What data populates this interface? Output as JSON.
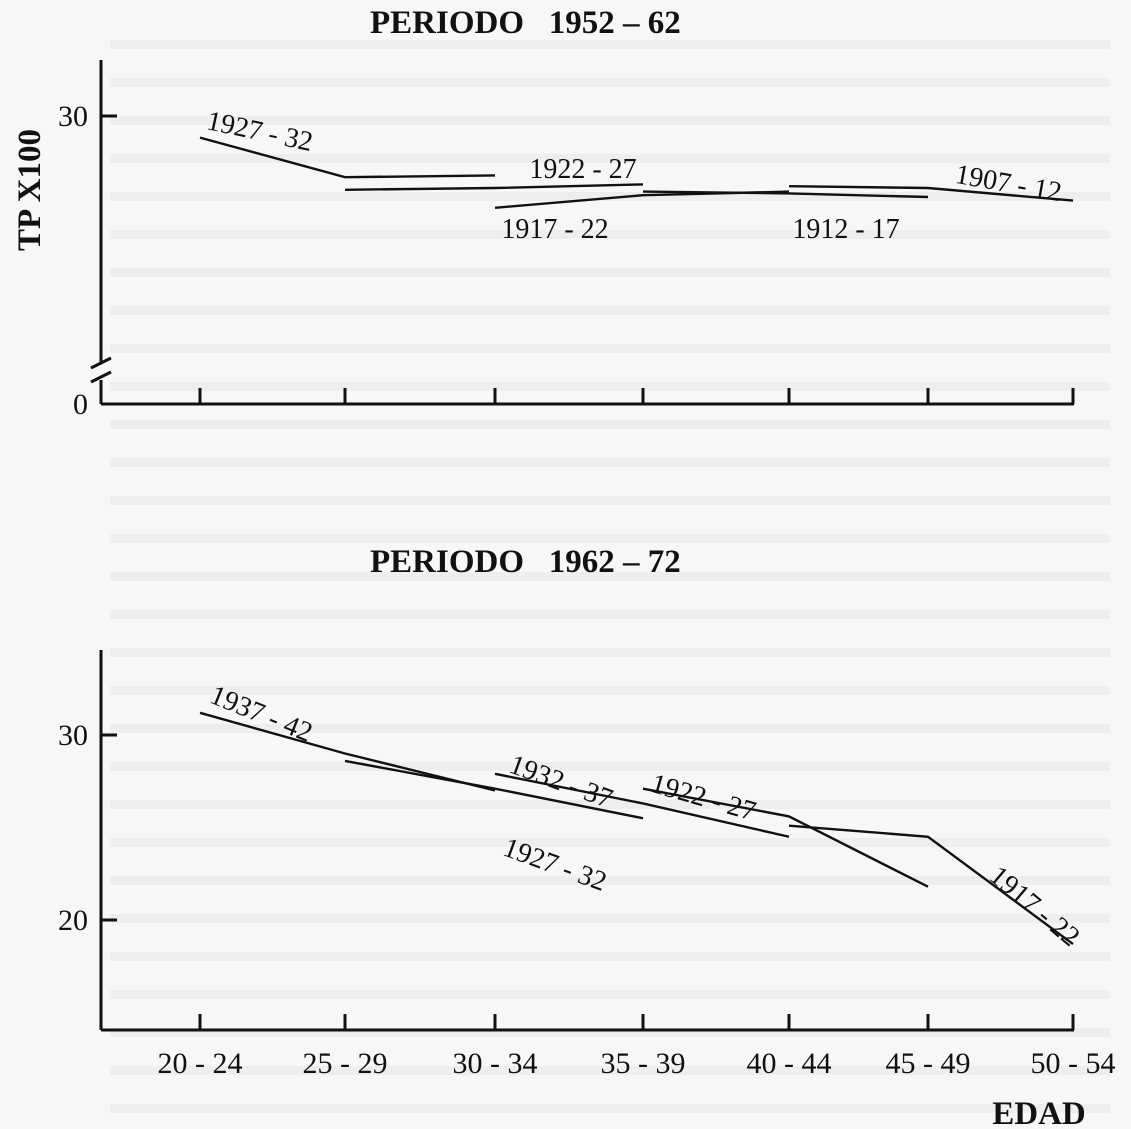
{
  "chart_data": [
    {
      "type": "line",
      "title": "PERIODO   1952 – 62",
      "ylabel": "TP X100",
      "y_tick_labels": [
        "0",
        "30"
      ],
      "ylim": [
        0,
        32
      ],
      "x_broken_axis": true,
      "categories": [
        "20 - 24",
        "25 - 29",
        "30 - 34",
        "35 - 39",
        "40 - 44",
        "45 - 49",
        "50 - 54"
      ],
      "series": [
        {
          "name": "1927 - 32",
          "points": [
            {
              "x": "20 - 24",
              "y": 28.8
            },
            {
              "x": "25 - 29",
              "y": 26.6
            },
            {
              "x": "30 - 34",
              "y": 26.7
            }
          ]
        },
        {
          "name": "1922 - 27",
          "points": [
            {
              "x": "25 - 29",
              "y": 25.9
            },
            {
              "x": "30 - 34",
              "y": 26.0
            },
            {
              "x": "35 - 39",
              "y": 26.2
            }
          ]
        },
        {
          "name": "1917 - 22",
          "points": [
            {
              "x": "30 - 34",
              "y": 24.9
            },
            {
              "x": "35 - 39",
              "y": 25.6
            },
            {
              "x": "40 - 44",
              "y": 25.8
            }
          ]
        },
        {
          "name": "1912 - 17",
          "points": [
            {
              "x": "35 - 39",
              "y": 25.8
            },
            {
              "x": "40 - 44",
              "y": 25.7
            },
            {
              "x": "45 - 49",
              "y": 25.5
            }
          ]
        },
        {
          "name": "1907 - 12",
          "points": [
            {
              "x": "40 - 44",
              "y": 26.1
            },
            {
              "x": "45 - 49",
              "y": 26.0
            },
            {
              "x": "50 - 54",
              "y": 25.3
            }
          ]
        }
      ]
    },
    {
      "type": "line",
      "title": "PERIODO   1962 – 72",
      "xlabel": "EDAD",
      "y_tick_labels": [
        "20",
        "30"
      ],
      "ylim": [
        16,
        32
      ],
      "categories": [
        "20 - 24",
        "25 - 29",
        "30 - 34",
        "35 - 39",
        "40 - 44",
        "45 - 49",
        "50 - 54"
      ],
      "series": [
        {
          "name": "1937 - 42",
          "points": [
            {
              "x": "20 - 24",
              "y": 31.2
            },
            {
              "x": "25 - 29",
              "y": 29.0
            },
            {
              "x": "30 - 34",
              "y": 27.0
            }
          ]
        },
        {
          "name": "1932 - 37",
          "points": [
            {
              "x": "25 - 29",
              "y": 28.6
            },
            {
              "x": "30 - 34",
              "y": 27.1
            },
            {
              "x": "35 - 39",
              "y": 25.5
            }
          ]
        },
        {
          "name": "1927 - 32",
          "points": [
            {
              "x": "30 - 34",
              "y": 27.9
            },
            {
              "x": "35 - 39",
              "y": 26.3
            },
            {
              "x": "40 - 44",
              "y": 24.5
            }
          ]
        },
        {
          "name": "1922 - 27",
          "points": [
            {
              "x": "35 - 39",
              "y": 27.1
            },
            {
              "x": "40 - 44",
              "y": 25.6
            },
            {
              "x": "45 - 49",
              "y": 21.8
            }
          ]
        },
        {
          "name": "1917 - 22",
          "points": [
            {
              "x": "40 - 44",
              "y": 25.1
            },
            {
              "x": "45 - 49",
              "y": 24.5
            },
            {
              "x": "50 - 54",
              "y": 18.7
            }
          ]
        }
      ]
    }
  ]
}
